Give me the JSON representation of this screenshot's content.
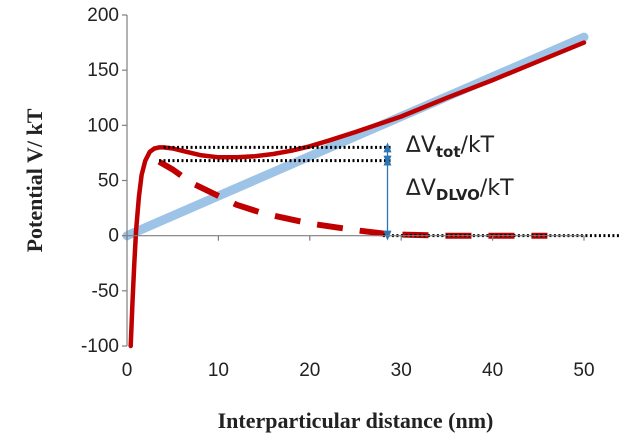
{
  "chart_data": {
    "type": "line",
    "xlabel": "Interparticular distance (nm)",
    "ylabel": "Potential V/ kT",
    "xlim": [
      0,
      50
    ],
    "ylim": [
      -100,
      200
    ],
    "xticks": [
      0,
      10,
      20,
      30,
      40,
      50
    ],
    "yticks": [
      -100,
      -50,
      0,
      50,
      100,
      150,
      200
    ],
    "grid": false,
    "legend": "none",
    "series": [
      {
        "style": "solid-thick",
        "color": "#9dc3e6",
        "x": [
          0,
          50
        ],
        "y": [
          0,
          180
        ]
      },
      {
        "style": "solid",
        "color": "#c00000",
        "x": [
          0.4,
          0.6,
          0.8,
          1.0,
          1.3,
          1.6,
          2.0,
          2.5,
          3.0,
          3.5,
          4.0,
          5,
          6,
          8,
          10,
          12,
          14,
          16,
          18,
          20,
          22,
          25,
          30,
          35,
          40,
          45,
          50
        ],
        "y": [
          -100,
          -60,
          -25,
          5,
          35,
          55,
          68,
          76,
          79,
          80,
          80,
          79,
          77,
          73,
          71,
          71,
          72,
          74,
          77,
          81,
          86,
          94,
          108,
          125,
          141,
          158,
          175
        ]
      },
      {
        "style": "dashed",
        "color": "#c00000",
        "x": [
          3.5,
          5,
          7,
          10,
          12,
          15,
          20,
          25,
          28,
          30,
          35,
          40,
          46
        ],
        "y": [
          67,
          60,
          48,
          36,
          28,
          20,
          11,
          5,
          2,
          1,
          0,
          0,
          0
        ]
      }
    ],
    "reference_lines": [
      {
        "style": "dotted",
        "color": "#000000",
        "y": 80,
        "x_from": 4,
        "x_to": 29
      },
      {
        "style": "dotted",
        "color": "#000000",
        "y": 68,
        "x_from": 3.5,
        "x_to": 29
      },
      {
        "style": "dotted",
        "color": "#000000",
        "y": 0,
        "x_from": 28,
        "x_to": 54
      }
    ],
    "arrows": [
      {
        "color": "#2e75b6",
        "x": 28.5,
        "y_from": 68,
        "y_to": 80
      },
      {
        "color": "#2e75b6",
        "x": 28.5,
        "y_from": 0,
        "y_to": 68
      }
    ],
    "annotations": [
      {
        "base": "ΔV",
        "sub": "tot",
        "suffix": "/kT",
        "x": 30.5,
        "y": 76
      },
      {
        "base": "ΔV",
        "sub": "DLVO",
        "suffix": "/kT",
        "x": 30.5,
        "y": 37
      }
    ]
  }
}
